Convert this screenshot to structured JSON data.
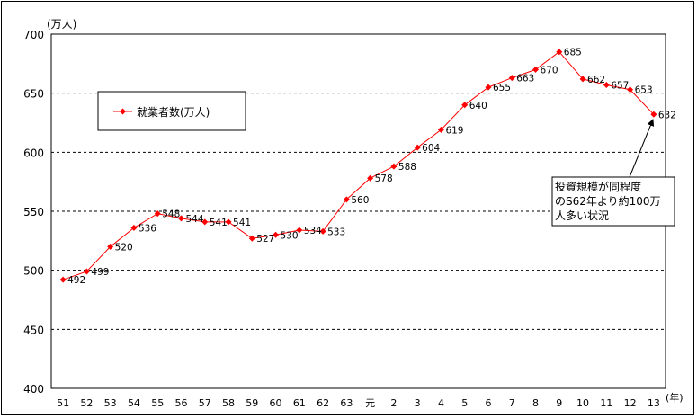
{
  "chart_data": {
    "type": "line",
    "y_unit_label": "(万人)",
    "x_unit_label": "(年)",
    "ylim": [
      400,
      700
    ],
    "yticks": [
      400,
      450,
      500,
      550,
      600,
      650,
      700
    ],
    "grid": "horizontal dashed",
    "legend_position": "top-left",
    "line_color": "#ff0000",
    "series": [
      {
        "name": "就業者数(万人)",
        "x": [
          "51",
          "52",
          "53",
          "54",
          "55",
          "56",
          "57",
          "58",
          "59",
          "60",
          "61",
          "62",
          "63",
          "元",
          "2",
          "3",
          "4",
          "5",
          "6",
          "7",
          "8",
          "9",
          "10",
          "11",
          "12",
          "13"
        ],
        "values": [
          492,
          499,
          520,
          536,
          548,
          544,
          541,
          541,
          527,
          530,
          534,
          533,
          560,
          578,
          588,
          604,
          619,
          640,
          655,
          663,
          670,
          685,
          662,
          657,
          653,
          632
        ]
      }
    ],
    "annotations": [
      {
        "lines": [
          "投資規模が同程度",
          "のS62年より約100万",
          "人多い状況"
        ],
        "points_to": "13"
      }
    ]
  }
}
